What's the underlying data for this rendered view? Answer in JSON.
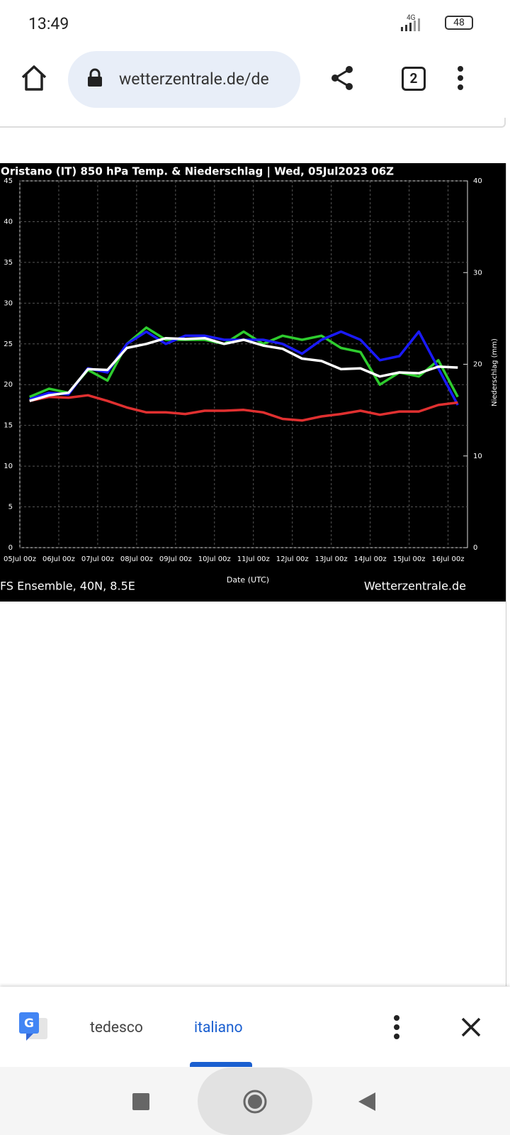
{
  "status_bar": {
    "time": "13:49",
    "network": "4G",
    "battery": "48"
  },
  "browser": {
    "url": "wetterzentrale.de/de",
    "tab_count": "2"
  },
  "chart_data": {
    "type": "line",
    "title": "Oristano  (IT)  850 hPa Temp. & Niederschlag | Wed, 05Jul2023 06Z",
    "x_label": "Date (UTC)",
    "y2_label": "Niederschlag (mm)",
    "source_left": "FS Ensemble, 40N, 8.5E",
    "source_right": "Wetterzentrale.de",
    "x": [
      6,
      18,
      30,
      42,
      54,
      66,
      78,
      90,
      102,
      114,
      126,
      138,
      150,
      162,
      174,
      186,
      198,
      210,
      222,
      234,
      246,
      258,
      270
    ],
    "xlim": [
      0,
      276
    ],
    "xticks": [
      {
        "value": 0,
        "label": "05Jul 00z"
      },
      {
        "value": 24,
        "label": "06Jul 00z"
      },
      {
        "value": 48,
        "label": "07Jul 00z"
      },
      {
        "value": 72,
        "label": "08Jul 00z"
      },
      {
        "value": 96,
        "label": "09Jul 00z"
      },
      {
        "value": 120,
        "label": "10Jul 00z"
      },
      {
        "value": 144,
        "label": "11Jul 00z"
      },
      {
        "value": 168,
        "label": "12Jul 00z"
      },
      {
        "value": 192,
        "label": "13Jul 00z"
      },
      {
        "value": 216,
        "label": "14Jul 00z"
      },
      {
        "value": 240,
        "label": "15Jul 00z"
      },
      {
        "value": 264,
        "label": "16Jul 00z"
      }
    ],
    "ylim": [
      0,
      45
    ],
    "yticks": [
      0,
      5,
      10,
      15,
      20,
      25,
      30,
      35,
      40,
      45
    ],
    "y2lim": [
      0,
      40
    ],
    "y2ticks": [
      0,
      10,
      20,
      30,
      40
    ],
    "grid": true,
    "series": [
      {
        "color": "#2ecc2e",
        "values": [
          18.5,
          19.5,
          19.0,
          21.8,
          20.5,
          25.0,
          27.0,
          25.5,
          25.5,
          25.5,
          25.0,
          26.5,
          25.0,
          26.0,
          25.5,
          26.0,
          24.5,
          24.0,
          20.0,
          21.5,
          21.0,
          23.0,
          18.5
        ]
      },
      {
        "color": "#1a1aff",
        "values": [
          18.2,
          19.0,
          18.8,
          22.0,
          21.5,
          25.0,
          26.5,
          25.0,
          26.0,
          26.0,
          25.5,
          25.5,
          25.5,
          25.0,
          23.8,
          25.5,
          26.5,
          25.5,
          23.0,
          23.5,
          26.5,
          22.0,
          17.5
        ]
      },
      {
        "color": "#e03030",
        "values": [
          18.0,
          18.5,
          18.4,
          18.7,
          18.0,
          17.2,
          16.6,
          16.6,
          16.4,
          16.8,
          16.8,
          16.9,
          16.6,
          15.8,
          15.6,
          16.1,
          16.4,
          16.8,
          16.3,
          16.7,
          16.7,
          17.5,
          17.8
        ]
      },
      {
        "color": "#ffffff",
        "values": [
          18.0,
          18.7,
          19.0,
          21.9,
          21.8,
          24.5,
          25.0,
          25.7,
          25.6,
          25.7,
          25.0,
          25.5,
          24.8,
          24.4,
          23.2,
          22.9,
          21.9,
          22.0,
          21.0,
          21.5,
          21.4,
          22.2,
          22.1
        ]
      }
    ]
  },
  "translate_bar": {
    "source_language": "tedesco",
    "target_language": "italiano"
  }
}
